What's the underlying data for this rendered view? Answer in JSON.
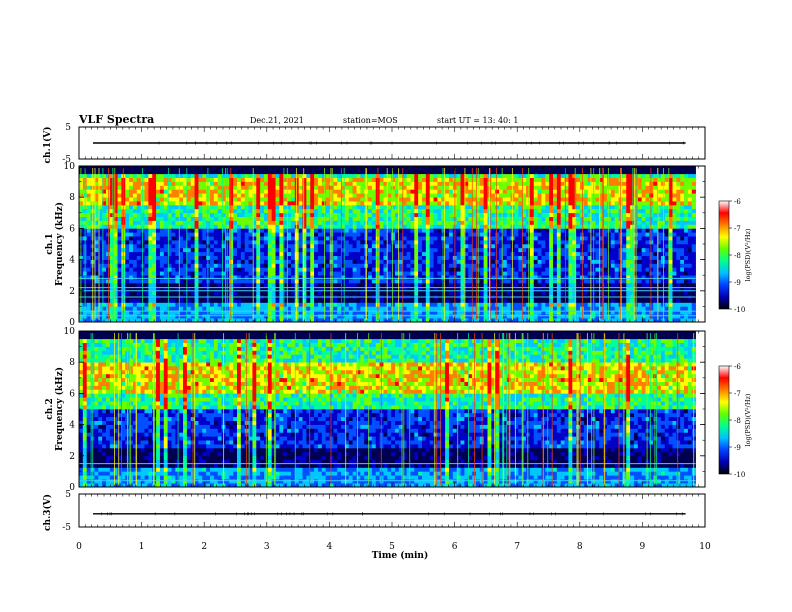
{
  "header": {
    "title": "VLF Spectra",
    "date": "Dec.21, 2021",
    "station": "station=MOS",
    "start_ut": "start UT =  13: 40: 1"
  },
  "colors": {
    "colormap": [
      "#000050",
      "#0000c8",
      "#0050ff",
      "#00c8ff",
      "#00ff9c",
      "#6cff00",
      "#ffff00",
      "#ff8000",
      "#ff0000",
      "#ffffff"
    ],
    "trace": "#000000",
    "frame": "#000000"
  },
  "chart_data": [
    {
      "type": "line",
      "panel": "ch1-voltage",
      "ylabel": "ch.1(V)",
      "ylim": [
        -5,
        5
      ],
      "y_ticks": [
        "5",
        "-5"
      ],
      "trace_level": 0
    },
    {
      "type": "heatmap",
      "panel": "ch1-spectrogram",
      "ylabel": "ch.1 Frequency (kHz)",
      "ylim": [
        0,
        10
      ],
      "y_ticks": [
        "0",
        "2",
        "4",
        "6",
        "8",
        "10"
      ],
      "colorbar": {
        "label": "log(PSD)(V²/Hz)",
        "range": [
          -10,
          -6
        ],
        "ticks": [
          "-6",
          "-7",
          "-8",
          "-9",
          "-10"
        ]
      },
      "signal_band_khz": [
        6,
        10
      ],
      "peak_band_khz": [
        7.5,
        9.2
      ],
      "narrowband_lines_khz": [
        0.4,
        0.7,
        1.6,
        2.0,
        2.2,
        2.8
      ]
    },
    {
      "type": "heatmap",
      "panel": "ch2-spectrogram",
      "ylabel": "ch.2 Frequency (kHz)",
      "ylim": [
        0,
        10
      ],
      "y_ticks": [
        "0",
        "2",
        "4",
        "6",
        "8",
        "10"
      ],
      "colorbar": {
        "label": "log(PSD)(V²/Hz)",
        "range": [
          -10,
          -6
        ],
        "ticks": [
          "-6",
          "-7",
          "-8",
          "-9",
          "-10"
        ]
      },
      "signal_band_khz": [
        5,
        10
      ],
      "peak_band_khz": [
        6,
        8
      ],
      "narrowband_lines_khz": [
        0.4,
        1.5
      ]
    },
    {
      "type": "line",
      "panel": "ch3-voltage",
      "ylabel": "ch.3(V)",
      "ylim": [
        -5,
        5
      ],
      "y_ticks": [
        "5",
        "-5"
      ],
      "trace_level": -1
    }
  ],
  "x_axis": {
    "label": "Time (min)",
    "range": [
      0,
      10
    ],
    "ticks": [
      "0",
      "1",
      "2",
      "3",
      "4",
      "5",
      "6",
      "7",
      "8",
      "9",
      "10"
    ],
    "data_end_min": 9.85
  }
}
